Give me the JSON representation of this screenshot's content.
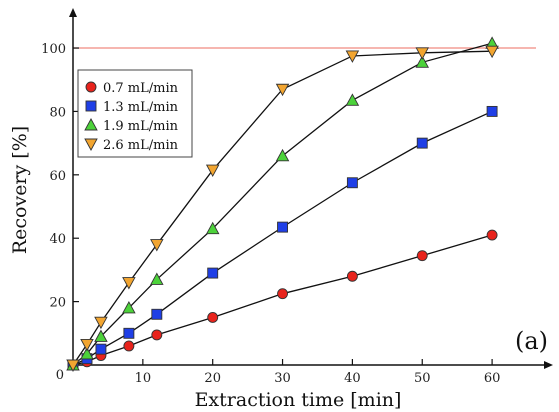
{
  "chart_data": {
    "type": "line",
    "title": "",
    "xlabel": "Extraction time [min]",
    "ylabel": "Recovery [%]",
    "xlim": [
      0,
      66
    ],
    "ylim": [
      0,
      112
    ],
    "xticks": [
      0,
      10,
      20,
      30,
      40,
      50,
      60
    ],
    "yticks": [
      20,
      40,
      60,
      80,
      100
    ],
    "origin_label": "0",
    "reference_line": {
      "y": 100,
      "color": "#f08a80"
    },
    "panel_label": "(a)",
    "legend_position": "top-left",
    "grid": false,
    "series": [
      {
        "name": "0.7 mL/min",
        "marker": "circle",
        "color": "#e8231c",
        "x": [
          0,
          2,
          4,
          8,
          12,
          20,
          30,
          40,
          50,
          60
        ],
        "y": [
          0,
          1,
          3,
          6,
          9.5,
          15,
          22.5,
          28,
          34.5,
          41
        ]
      },
      {
        "name": "1.3 mL/min",
        "marker": "square",
        "color": "#1f3fe6",
        "x": [
          0,
          2,
          4,
          8,
          12,
          20,
          30,
          40,
          50,
          60
        ],
        "y": [
          0,
          2,
          5,
          10,
          16,
          29,
          43.5,
          57.5,
          70,
          80
        ]
      },
      {
        "name": "1.9 mL/min",
        "marker": "triangle-up",
        "color": "#4cd23a",
        "x": [
          0,
          2,
          4,
          8,
          12,
          20,
          30,
          40,
          50,
          60
        ],
        "y": [
          0,
          3.5,
          9,
          18,
          27,
          43,
          66,
          83.5,
          95.5,
          101.5
        ]
      },
      {
        "name": "2.6 mL/min",
        "marker": "triangle-down",
        "color": "#f2a530",
        "x": [
          0,
          2,
          4,
          8,
          12,
          20,
          30,
          40,
          50,
          60
        ],
        "y": [
          0,
          6.5,
          13.5,
          26,
          38,
          61.5,
          87,
          97.5,
          98.5,
          99
        ]
      }
    ]
  }
}
